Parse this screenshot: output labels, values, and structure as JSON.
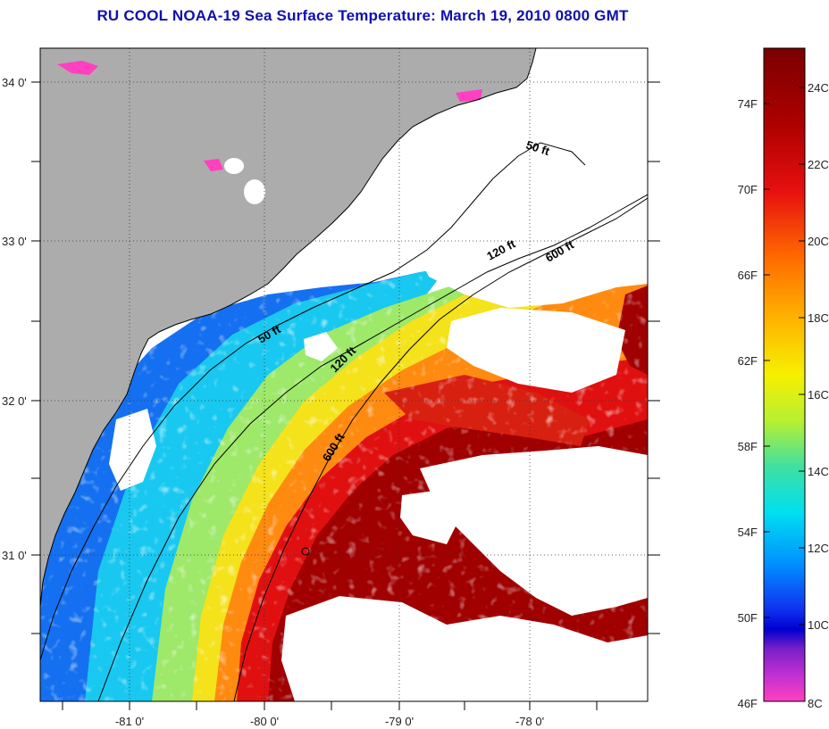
{
  "title": "RU COOL  NOAA-19  Sea Surface Temperature:  March 19, 2010 0800 GMT",
  "lat_labels": [
    "34 0'",
    "33 0'",
    "32 0'",
    "31 0'"
  ],
  "lon_labels": [
    "-81 0'",
    "-80 0'",
    "-79 0'",
    "-78 0'"
  ],
  "contours": [
    "50 ft",
    "50 ft",
    "120 ft",
    "120 ft",
    "600 ft",
    "600 ft"
  ],
  "colorbar": {
    "fahrenheit": [
      "74F",
      "70F",
      "66F",
      "62F",
      "58F",
      "54F",
      "50F",
      "46F"
    ],
    "celsius": [
      "24C",
      "22C",
      "20C",
      "18C",
      "16C",
      "14C",
      "12C",
      "10C",
      "8C"
    ]
  },
  "colors": {
    "land": "#acacac",
    "cloud": "#ffffff",
    "title": "#1010b0"
  }
}
